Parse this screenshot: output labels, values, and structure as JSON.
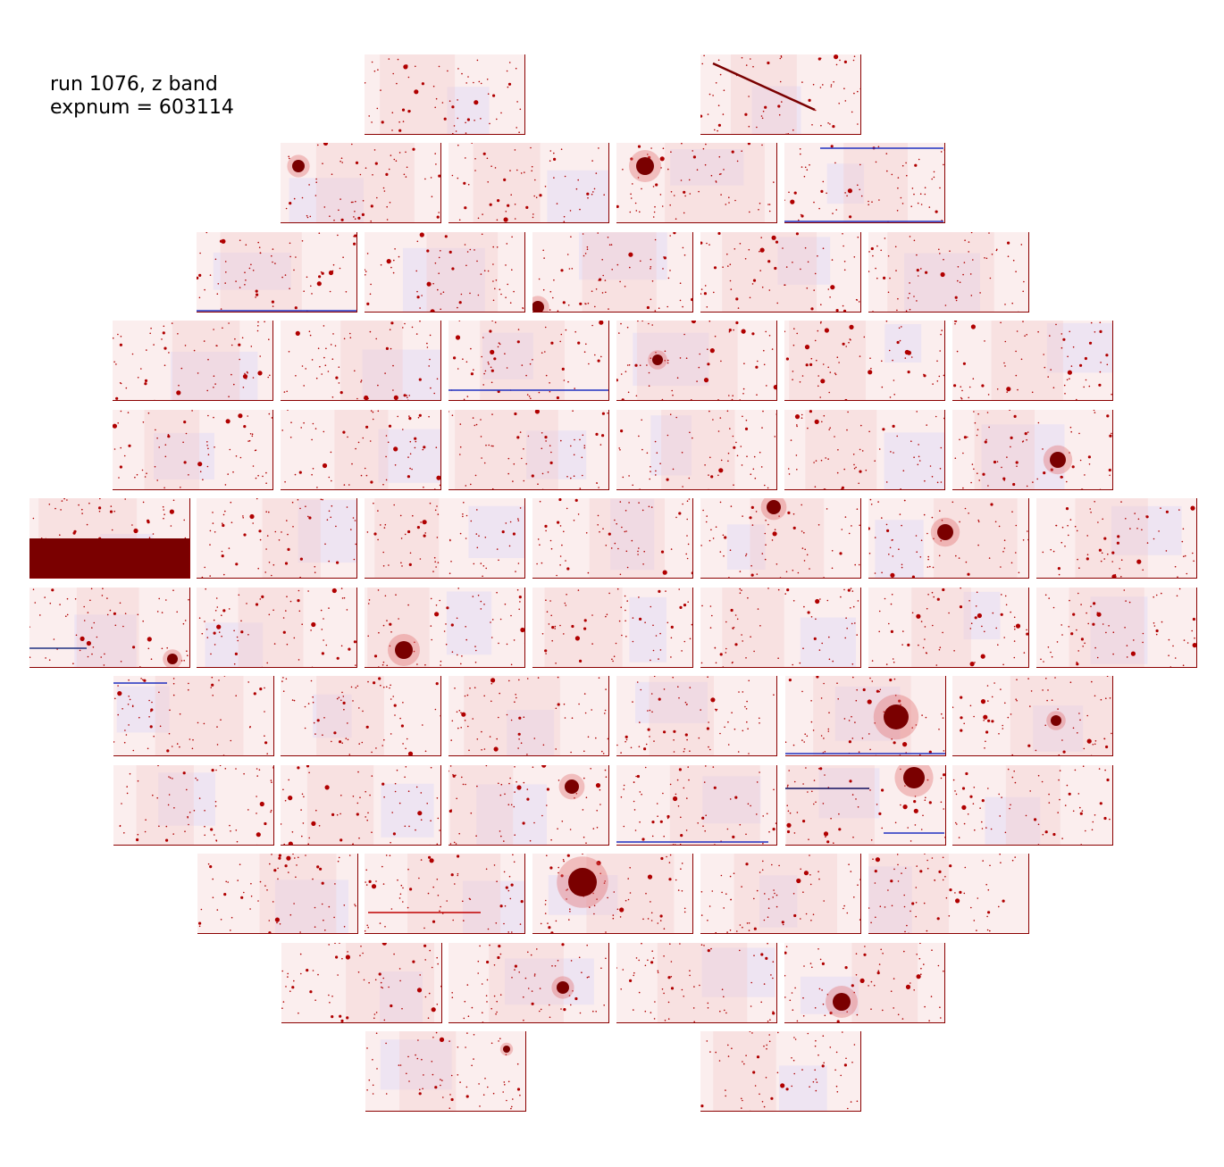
{
  "caption": {
    "line1": "run 1076, z band",
    "line2": "expnum = 603114"
  },
  "colors": {
    "background": "#ffffff",
    "sky": "#fbeeee",
    "source": "#b00000",
    "bright_source": "#7a0000",
    "low": "#c8c8ff",
    "masked_region": "#7a0000"
  },
  "focal_plane": {
    "rows": [
      2,
      4,
      5,
      6,
      6,
      7,
      7,
      6,
      6,
      5,
      4,
      2
    ],
    "ccd_count": 60
  }
}
